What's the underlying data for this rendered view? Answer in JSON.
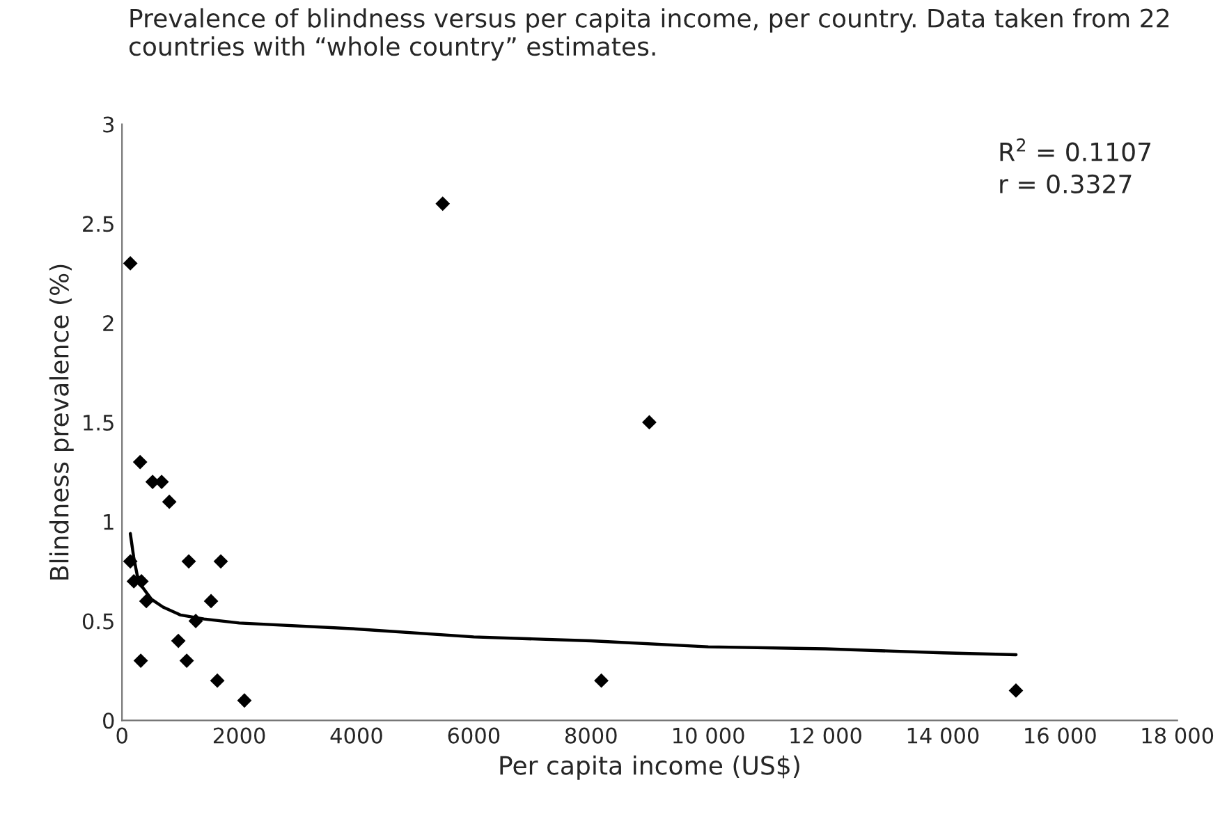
{
  "chart_data": {
    "type": "scatter",
    "title": "Prevalence of blindness versus per capita income, per country. Data taken from 22 countries with “whole country” estimates.",
    "xlabel": "Per capita income (US$)",
    "ylabel": "Blindness prevalence (%)",
    "series": [
      {
        "color": "#000000",
        "marker": "diamond",
        "x": [
          142,
          5470,
          8994,
          309,
          522,
          676,
          807,
          142,
          1139,
          1685,
          202,
          332,
          415,
          1519,
          1258,
          961,
          320,
          1104,
          1626,
          8176,
          2088,
          15248
        ],
        "values": [
          2.3,
          2.6,
          1.5,
          1.3,
          1.2,
          1.2,
          1.1,
          0.8,
          0.8,
          0.8,
          0.7,
          0.7,
          0.6,
          0.6,
          0.5,
          0.4,
          0.3,
          0.3,
          0.2,
          0.2,
          0.1,
          0.15
        ]
      },
      {
        "type": "line",
        "color": "#000000",
        "marker": "none",
        "line_style": "solid",
        "x": [
          142,
          200,
          260,
          350,
          500,
          700,
          1000,
          1400,
          2000,
          4000,
          6000,
          8000,
          10000,
          12000,
          14000,
          15250
        ],
        "values": [
          0.94,
          0.82,
          0.73,
          0.67,
          0.61,
          0.57,
          0.53,
          0.51,
          0.49,
          0.46,
          0.42,
          0.4,
          0.37,
          0.36,
          0.34,
          0.33
        ]
      }
    ],
    "annotations": [
      "R$^{2}$ = 0.1107\nr = 0.3327"
    ],
    "xlim": [
      0,
      18000
    ],
    "xticks": [
      0,
      2000,
      4000,
      6000,
      8000,
      {
        "value": 10000,
        "label": "10 000"
      },
      {
        "value": 12000,
        "label": "12 000"
      },
      {
        "value": 14000,
        "label": "14 000"
      },
      {
        "value": 16000,
        "label": "16 000"
      },
      {
        "value": 18000,
        "label": "18 000"
      }
    ],
    "ylim": [
      0,
      3
    ],
    "yticks": [
      0,
      0.5,
      1,
      1.5,
      2,
      2.5,
      3
    ],
    "grid": false,
    "legend": false
  }
}
